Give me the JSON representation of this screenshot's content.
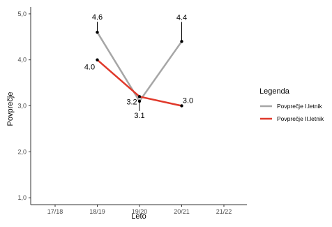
{
  "chart_data": {
    "type": "line",
    "xlabel": "Leto",
    "ylabel": "Povprečje",
    "categories": [
      "17/18",
      "18/19",
      "19/20",
      "20/21",
      "21/22"
    ],
    "ylim": [
      0.85,
      5.15
    ],
    "yticks": [
      1.0,
      2.0,
      3.0,
      4.0,
      5.0
    ],
    "ytick_labels": [
      "1,0",
      "2,0",
      "3,0",
      "4,0",
      "5,0"
    ],
    "grid": false,
    "legend": {
      "title": "Legenda",
      "placement": "right"
    },
    "series": [
      {
        "name": "Povprečje I.letnik",
        "color": "#a6a6a6",
        "x": [
          "18/19",
          "19/20",
          "20/21"
        ],
        "values": [
          4.6,
          3.1,
          4.4
        ],
        "labels": [
          "4.6",
          "3.1",
          "4.4"
        ]
      },
      {
        "name": "Povprečje II.letnik",
        "color": "#e0392b",
        "x": [
          "18/19",
          "19/20",
          "20/21"
        ],
        "values": [
          4.0,
          3.2,
          3.0
        ],
        "labels": [
          "4.0",
          "3.2",
          "3.0"
        ]
      }
    ]
  }
}
